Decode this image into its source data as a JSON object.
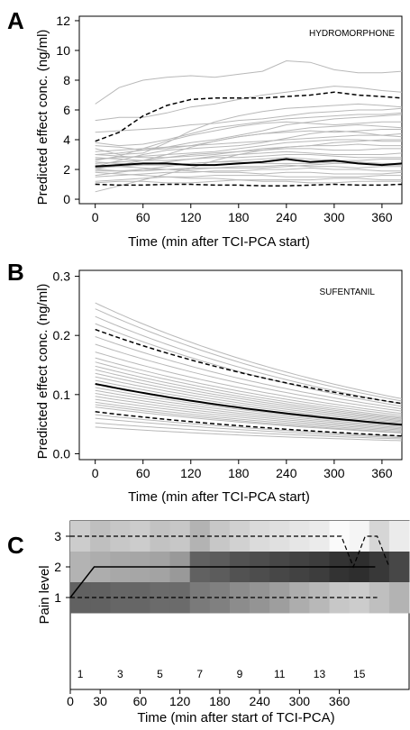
{
  "chart_data": [
    {
      "panel": "A",
      "type": "line",
      "annotation": "HYDROMORPHONE",
      "xlabel": "Time (min after TCI-PCA start)",
      "ylabel": "Predicted effect conc. (ng/ml)",
      "xlim": [
        -20,
        385
      ],
      "ylim": [
        -0.3,
        12.3
      ],
      "xticks": [
        0,
        60,
        120,
        180,
        240,
        300,
        360
      ],
      "yticks": [
        0,
        2,
        4,
        6,
        8,
        10,
        12
      ],
      "x": [
        0,
        30,
        60,
        90,
        120,
        150,
        180,
        210,
        240,
        270,
        300,
        330,
        360,
        385
      ],
      "series": [
        {
          "role": "median",
          "style": "solid-black",
          "values": [
            2.2,
            2.3,
            2.4,
            2.4,
            2.3,
            2.3,
            2.4,
            2.5,
            2.7,
            2.5,
            2.6,
            2.4,
            2.3,
            2.4
          ]
        },
        {
          "role": "upper",
          "style": "dashed-black",
          "values": [
            3.9,
            4.5,
            5.6,
            6.3,
            6.7,
            6.8,
            6.8,
            6.8,
            6.9,
            7.0,
            7.2,
            7.0,
            6.9,
            6.8
          ]
        },
        {
          "role": "lower",
          "style": "dashed-black",
          "values": [
            1.0,
            0.95,
            0.95,
            1.0,
            1.0,
            0.95,
            0.95,
            0.9,
            0.9,
            0.95,
            1.0,
            0.95,
            0.95,
            1.0
          ]
        },
        {
          "role": "individual",
          "values": [
            6.4,
            7.5,
            8.0,
            8.2,
            8.3,
            8.2,
            8.4,
            8.6,
            9.3,
            9.2,
            8.7,
            8.5,
            8.5,
            8.6
          ]
        },
        {
          "role": "individual",
          "values": [
            5.3,
            5.5,
            5.5,
            5.8,
            6.2,
            6.4,
            6.7,
            7.0,
            7.2,
            7.4,
            7.6,
            7.5,
            7.3,
            7.2
          ]
        },
        {
          "role": "individual",
          "values": [
            3.4,
            3.0,
            3.1,
            3.8,
            4.6,
            5.2,
            5.6,
            5.9,
            6.1,
            6.2,
            6.3,
            6.4,
            6.3,
            6.2
          ]
        },
        {
          "role": "individual",
          "values": [
            4.5,
            4.6,
            4.7,
            4.8,
            5.0,
            5.1,
            5.3,
            5.4,
            5.6,
            5.8,
            5.9,
            6.0,
            6.0,
            6.1
          ]
        },
        {
          "role": "individual",
          "values": [
            3.0,
            3.1,
            3.3,
            3.5,
            3.8,
            4.0,
            4.3,
            4.6,
            5.0,
            5.2,
            5.4,
            5.5,
            5.6,
            5.7
          ]
        },
        {
          "role": "individual",
          "values": [
            2.6,
            2.9,
            3.4,
            3.9,
            4.3,
            4.6,
            4.9,
            5.1,
            5.2,
            5.1,
            5.0,
            5.1,
            5.2,
            5.2
          ]
        },
        {
          "role": "individual",
          "values": [
            3.6,
            3.5,
            3.3,
            3.4,
            3.6,
            3.9,
            4.2,
            4.4,
            4.6,
            4.8,
            4.9,
            5.0,
            4.9,
            4.8
          ]
        },
        {
          "role": "individual",
          "values": [
            2.0,
            2.3,
            2.6,
            3.0,
            3.5,
            3.9,
            4.2,
            4.4,
            4.5,
            4.6,
            4.5,
            4.6,
            4.7,
            4.7
          ]
        },
        {
          "role": "individual",
          "values": [
            3.2,
            3.3,
            3.4,
            3.5,
            3.6,
            3.7,
            3.8,
            3.9,
            4.0,
            4.1,
            4.2,
            4.3,
            4.3,
            4.4
          ]
        },
        {
          "role": "individual",
          "values": [
            2.7,
            2.8,
            2.9,
            3.0,
            3.1,
            3.2,
            3.4,
            3.6,
            3.8,
            3.9,
            4.0,
            4.0,
            3.9,
            3.9
          ]
        },
        {
          "role": "individual",
          "values": [
            2.4,
            2.5,
            2.6,
            2.8,
            3.0,
            3.1,
            3.2,
            3.4,
            3.5,
            3.6,
            3.6,
            3.7,
            3.6,
            3.6
          ]
        },
        {
          "role": "individual",
          "values": [
            3.0,
            2.9,
            2.8,
            2.8,
            2.9,
            3.0,
            3.2,
            3.3,
            3.4,
            3.4,
            3.3,
            3.3,
            3.4,
            3.4
          ]
        },
        {
          "role": "individual",
          "values": [
            2.1,
            2.2,
            2.3,
            2.5,
            2.7,
            2.9,
            3.0,
            3.1,
            3.2,
            3.1,
            3.0,
            3.0,
            3.0,
            3.1
          ]
        },
        {
          "role": "individual",
          "values": [
            2.8,
            2.7,
            2.6,
            2.6,
            2.7,
            2.8,
            2.8,
            2.9,
            3.0,
            3.0,
            2.9,
            2.8,
            2.8,
            2.8
          ]
        },
        {
          "role": "individual",
          "values": [
            1.6,
            1.8,
            2.0,
            2.2,
            2.4,
            2.5,
            2.6,
            2.7,
            2.8,
            2.7,
            2.6,
            2.6,
            2.7,
            2.7
          ]
        },
        {
          "role": "individual",
          "values": [
            2.5,
            2.4,
            2.3,
            2.3,
            2.4,
            2.5,
            2.5,
            2.4,
            2.4,
            2.4,
            2.5,
            2.5,
            2.4,
            2.4
          ]
        },
        {
          "role": "individual",
          "values": [
            1.9,
            1.9,
            2.0,
            2.0,
            2.1,
            2.1,
            2.2,
            2.2,
            2.3,
            2.2,
            2.2,
            2.1,
            2.2,
            2.2
          ]
        },
        {
          "role": "individual",
          "values": [
            1.5,
            1.6,
            1.7,
            1.8,
            1.8,
            1.9,
            1.9,
            2.0,
            2.0,
            2.1,
            2.0,
            2.0,
            1.9,
            1.9
          ]
        },
        {
          "role": "individual",
          "values": [
            2.3,
            2.2,
            2.1,
            2.0,
            1.9,
            1.8,
            1.8,
            1.7,
            1.8,
            1.8,
            1.7,
            1.7,
            1.7,
            1.8
          ]
        },
        {
          "role": "individual",
          "values": [
            1.2,
            1.3,
            1.4,
            1.5,
            1.5,
            1.6,
            1.6,
            1.6,
            1.5,
            1.5,
            1.5,
            1.5,
            1.6,
            1.6
          ]
        },
        {
          "role": "individual",
          "values": [
            1.8,
            1.7,
            1.6,
            1.5,
            1.4,
            1.4,
            1.3,
            1.3,
            1.3,
            1.3,
            1.4,
            1.4,
            1.3,
            1.3
          ]
        },
        {
          "role": "individual",
          "values": [
            0.5,
            0.9,
            1.3,
            1.7,
            2.1,
            2.6,
            3.0,
            3.3,
            3.5,
            3.6,
            3.8,
            3.9,
            4.0,
            4.0
          ]
        },
        {
          "role": "individual",
          "values": [
            1.1,
            1.2,
            1.2,
            1.1,
            1.1,
            1.2,
            1.3,
            1.2,
            1.2,
            1.1,
            1.1,
            1.2,
            1.2,
            1.2
          ]
        },
        {
          "role": "individual",
          "values": [
            3.8,
            3.6,
            3.7,
            4.0,
            4.4,
            4.8,
            5.0,
            5.2,
            5.4,
            5.5,
            5.6,
            5.7,
            5.7,
            5.8
          ]
        },
        {
          "role": "individual",
          "values": [
            2.2,
            2.6,
            3.0,
            3.3,
            3.4,
            3.5,
            3.6,
            3.8,
            4.1,
            4.4,
            4.6,
            4.5,
            4.3,
            4.2
          ]
        },
        {
          "role": "individual",
          "values": [
            2.0,
            1.9,
            1.9,
            2.0,
            2.0,
            2.1,
            2.1,
            2.1,
            2.2,
            2.3,
            2.4,
            2.4,
            2.3,
            2.3
          ]
        }
      ]
    },
    {
      "panel": "B",
      "type": "line",
      "annotation": "SUFENTANIL",
      "xlabel": "Time (min after TCI-PCA start)",
      "ylabel": "Predicted effect conc. (ng/ml)",
      "xlim": [
        -20,
        385
      ],
      "ylim": [
        -0.01,
        0.31
      ],
      "xticks": [
        0,
        60,
        120,
        180,
        240,
        300,
        360
      ],
      "yticks": [
        0.0,
        0.1,
        0.2,
        0.3
      ],
      "yticklabels": [
        "0.0",
        "0.1",
        "0.2",
        "0.3"
      ],
      "x0_end": [
        0,
        385
      ],
      "decay_rate": 0.0023,
      "series": [
        {
          "role": "median",
          "style": "solid-black",
          "start": 0.118,
          "end": 0.049
        },
        {
          "role": "upper",
          "style": "dashed-black",
          "start": 0.21,
          "end": 0.085
        },
        {
          "role": "lower",
          "style": "dashed-black",
          "start": 0.071,
          "end": 0.03
        },
        {
          "role": "individual",
          "start": 0.255,
          "end": 0.093
        },
        {
          "role": "individual",
          "start": 0.245,
          "end": 0.089
        },
        {
          "role": "individual",
          "start": 0.232,
          "end": 0.084
        },
        {
          "role": "individual",
          "start": 0.22,
          "end": 0.08
        },
        {
          "role": "individual",
          "start": 0.198,
          "end": 0.076
        },
        {
          "role": "individual",
          "start": 0.185,
          "end": 0.072
        },
        {
          "role": "individual",
          "start": 0.172,
          "end": 0.068
        },
        {
          "role": "individual",
          "start": 0.162,
          "end": 0.065
        },
        {
          "role": "individual",
          "start": 0.155,
          "end": 0.062
        },
        {
          "role": "individual",
          "start": 0.148,
          "end": 0.06
        },
        {
          "role": "individual",
          "start": 0.142,
          "end": 0.058
        },
        {
          "role": "individual",
          "start": 0.136,
          "end": 0.056
        },
        {
          "role": "individual",
          "start": 0.13,
          "end": 0.054
        },
        {
          "role": "individual",
          "start": 0.124,
          "end": 0.052
        },
        {
          "role": "individual",
          "start": 0.112,
          "end": 0.048
        },
        {
          "role": "individual",
          "start": 0.107,
          "end": 0.046
        },
        {
          "role": "individual",
          "start": 0.102,
          "end": 0.044
        },
        {
          "role": "individual",
          "start": 0.097,
          "end": 0.042
        },
        {
          "role": "individual",
          "start": 0.092,
          "end": 0.04
        },
        {
          "role": "individual",
          "start": 0.087,
          "end": 0.038
        },
        {
          "role": "individual",
          "start": 0.083,
          "end": 0.036
        },
        {
          "role": "individual",
          "start": 0.079,
          "end": 0.035
        },
        {
          "role": "individual",
          "start": 0.066,
          "end": 0.029
        },
        {
          "role": "individual",
          "start": 0.06,
          "end": 0.027
        },
        {
          "role": "individual",
          "start": 0.052,
          "end": 0.025
        },
        {
          "role": "individual",
          "start": 0.045,
          "end": 0.022
        }
      ]
    },
    {
      "panel": "C",
      "type": "heatmap",
      "xlabel": "Time (min after start of TCI-PCA)",
      "ylabel": "Pain level",
      "xtick_values": [
        0,
        30,
        60,
        120,
        180,
        240,
        300,
        360
      ],
      "interval_labels": [
        "1",
        "3",
        "5",
        "7",
        "9",
        "11",
        "13",
        "15"
      ],
      "interval_label_positions": [
        1,
        3,
        5,
        7,
        9,
        11,
        13,
        15
      ],
      "n_intervals": 16,
      "y_levels": [
        1,
        2,
        3
      ],
      "intensity_level_1": [
        0.62,
        0.62,
        0.6,
        0.6,
        0.58,
        0.58,
        0.52,
        0.5,
        0.45,
        0.42,
        0.38,
        0.32,
        0.28,
        0.22,
        0.2,
        0.25,
        0.3
      ],
      "intensity_level_2": [
        0.3,
        0.32,
        0.34,
        0.35,
        0.36,
        0.4,
        0.62,
        0.64,
        0.68,
        0.7,
        0.72,
        0.74,
        0.76,
        0.8,
        0.82,
        0.78,
        0.72
      ],
      "intensity_level_3": [
        0.2,
        0.25,
        0.22,
        0.2,
        0.24,
        0.22,
        0.3,
        0.22,
        0.18,
        0.14,
        0.12,
        0.1,
        0.08,
        0.02,
        0.04,
        0.16,
        0.08
      ],
      "median_path": [
        [
          0,
          1
        ],
        [
          1.2,
          2
        ],
        [
          15.3,
          2
        ],
        [
          16,
          1.9
        ]
      ],
      "upper_path": [
        [
          0,
          3
        ],
        [
          13.6,
          3
        ],
        [
          14.2,
          2
        ],
        [
          14.8,
          3
        ],
        [
          15.4,
          3
        ],
        [
          16,
          2
        ]
      ],
      "lower_path": [
        [
          0,
          1
        ],
        [
          15.4,
          1
        ]
      ]
    }
  ]
}
